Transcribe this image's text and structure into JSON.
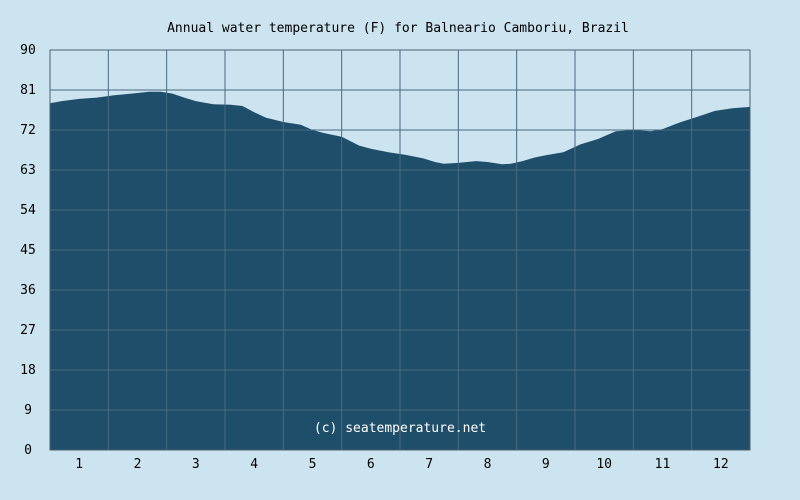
{
  "chart_data": {
    "type": "area",
    "title": "Annual water temperature (F) for Balneario Camboriu, Brazil",
    "xlabel": "",
    "ylabel": "",
    "x_ticks": [
      "1",
      "2",
      "3",
      "4",
      "5",
      "6",
      "7",
      "8",
      "9",
      "10",
      "11",
      "12"
    ],
    "y_ticks": [
      "0",
      "9",
      "18",
      "27",
      "36",
      "45",
      "54",
      "63",
      "72",
      "81",
      "90"
    ],
    "xlim": [
      0.5,
      12.5
    ],
    "ylim": [
      0,
      90
    ],
    "grid": true,
    "credit": "(c) seatemperature.net",
    "series": [
      {
        "x": [
          0.5,
          0.7,
          1,
          1.3,
          1.6,
          1.9,
          2.2,
          2.4,
          2.6,
          2.8,
          3,
          3.3,
          3.6,
          3.8,
          4,
          4.2,
          4.5,
          4.8,
          5,
          5.2,
          5.5,
          5.8,
          6,
          6.3,
          6.6,
          6.9,
          7.1,
          7.25,
          7.5,
          7.8,
          8,
          8.25,
          8.4,
          8.6,
          8.8,
          9,
          9.3,
          9.6,
          9.9,
          10.2,
          10.5,
          10.8,
          11,
          11.3,
          11.6,
          11.9,
          12.2,
          12.5
        ],
        "values": [
          78,
          78.5,
          79,
          79.3,
          79.8,
          80.2,
          80.6,
          80.6,
          80.2,
          79.3,
          78.5,
          77.8,
          77.7,
          77.4,
          76,
          74.8,
          73.8,
          73.2,
          72,
          71.3,
          70.5,
          68.5,
          67.8,
          67,
          66.4,
          65.6,
          64.8,
          64.4,
          64.6,
          65,
          64.8,
          64.3,
          64.4,
          65,
          65.8,
          66.3,
          67,
          68.8,
          70,
          71.7,
          72,
          71.7,
          72.2,
          73.7,
          75,
          76.3,
          76.9,
          77.2
        ],
        "color": "#1f4e6a"
      }
    ]
  }
}
